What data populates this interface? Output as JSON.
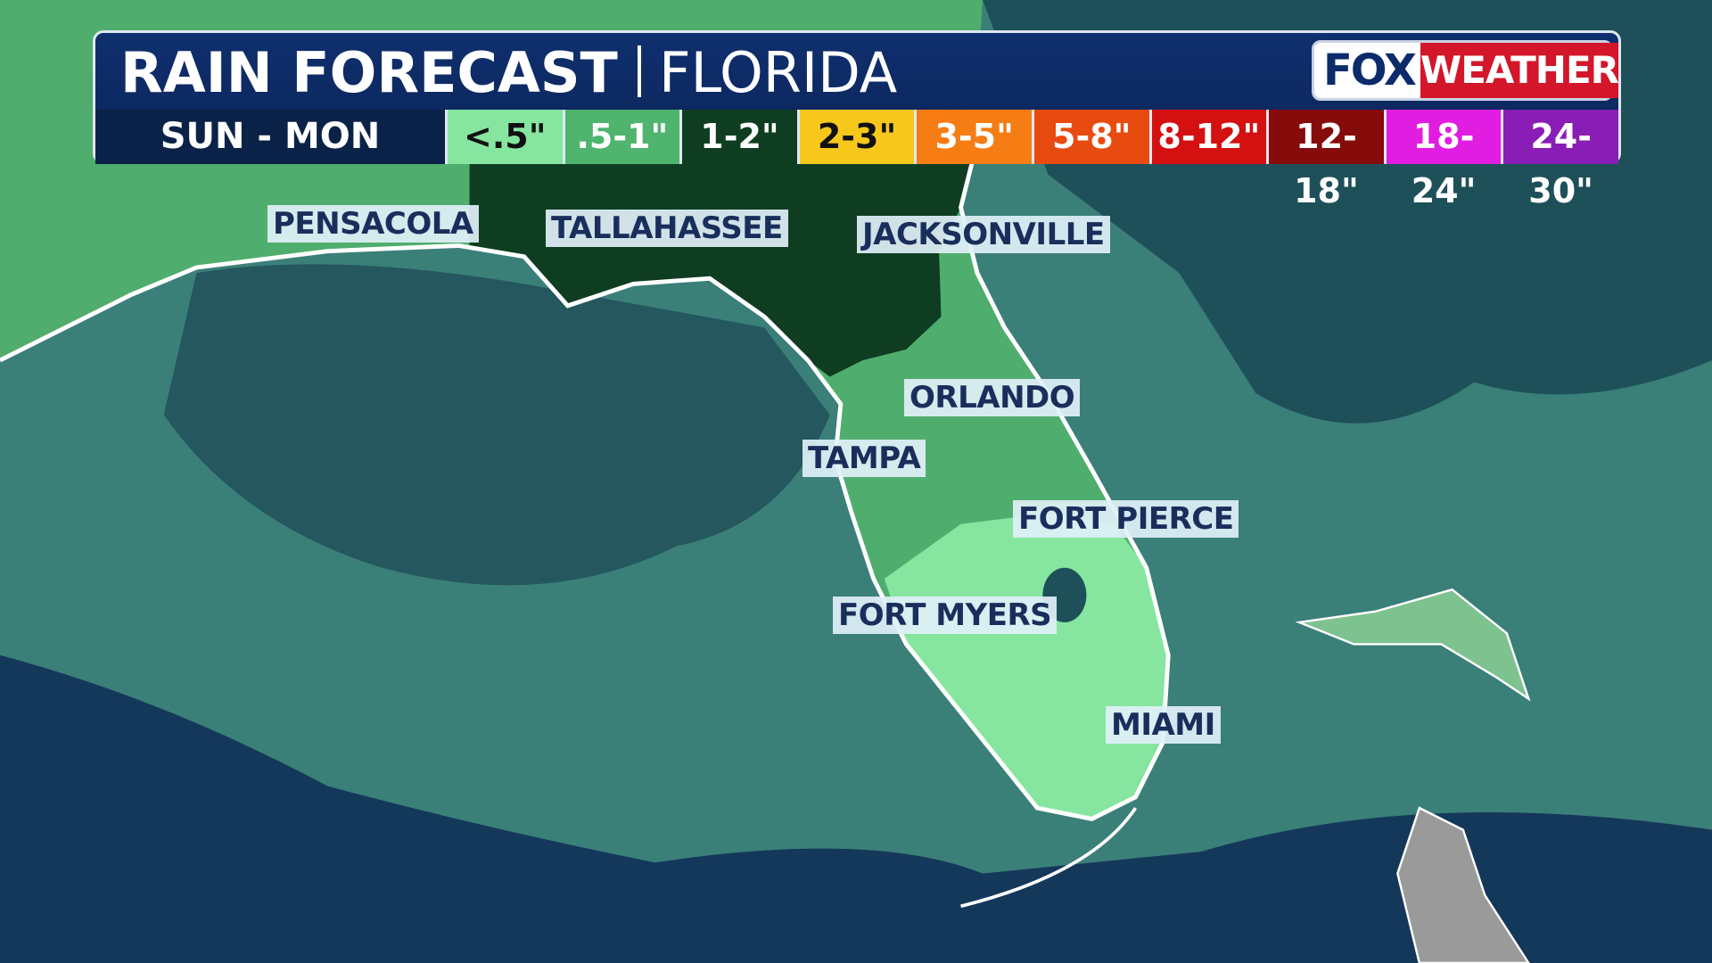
{
  "header": {
    "title": "RAIN FORECAST",
    "region": "FLORIDA",
    "period": "SUN - MON"
  },
  "logo": {
    "brand": "FOX",
    "product": "WEATHER"
  },
  "legend": [
    {
      "label": "<.5\"",
      "color": "#86e6a0"
    },
    {
      "label": ".5-1\"",
      "color": "#4fb46e"
    },
    {
      "label": "1-2\"",
      "color": "#0f3d22"
    },
    {
      "label": "2-3\"",
      "color": "#f6c81c"
    },
    {
      "label": "3-5\"",
      "color": "#f57d14"
    },
    {
      "label": "5-8\"",
      "color": "#e84b10"
    },
    {
      "label": "8-12\"",
      "color": "#d41010"
    },
    {
      "label": "12-18\"",
      "color": "#860b0b"
    },
    {
      "label": "18-24\"",
      "color": "#e11de1"
    },
    {
      "label": "24-30\"",
      "color": "#8a1db5"
    }
  ],
  "cities": [
    "PENSACOLA",
    "TALLAHASSEE",
    "JACKSONVILLE",
    "ORLANDO",
    "TAMPA",
    "FORT PIERCE",
    "FORT MYERS",
    "MIAMI"
  ]
}
